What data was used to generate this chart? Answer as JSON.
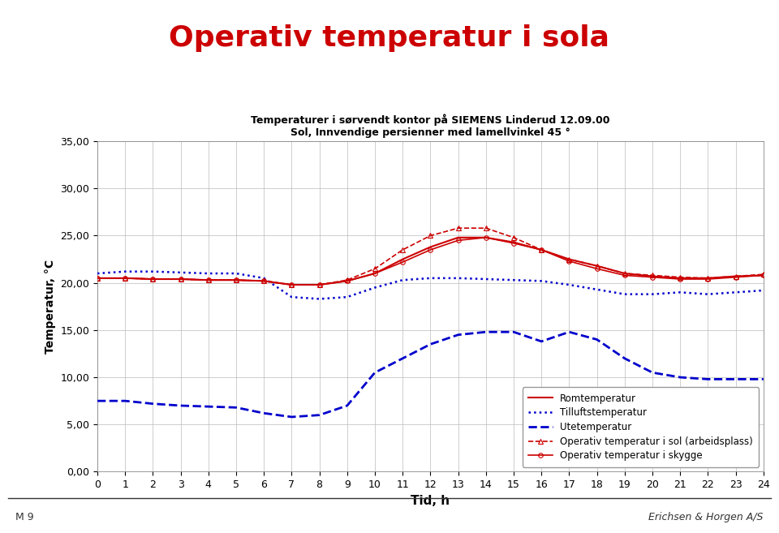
{
  "title": "Operativ temperatur i sola",
  "subtitle1": "Temperaturer i sørvendt kontor på SIEMENS Linderud 12.09.00",
  "subtitle2": "Sol, Innvendige persienner med lamellvinkel 45 °",
  "xlabel": "Tid, h",
  "ylabel": "Temperatur, °C",
  "xlim": [
    0,
    24
  ],
  "ylim": [
    0,
    35
  ],
  "yticks": [
    0.0,
    5.0,
    10.0,
    15.0,
    20.0,
    25.0,
    30.0,
    35.0
  ],
  "ytick_labels": [
    "0,00",
    "5,00",
    "10,00",
    "15,00",
    "20,00",
    "25,00",
    "30,00",
    "35,00"
  ],
  "xticks": [
    0,
    1,
    2,
    3,
    4,
    5,
    6,
    7,
    8,
    9,
    10,
    11,
    12,
    13,
    14,
    15,
    16,
    17,
    18,
    19,
    20,
    21,
    22,
    23,
    24
  ],
  "romtemperatur": [
    20.5,
    20.5,
    20.4,
    20.4,
    20.3,
    20.3,
    20.2,
    19.8,
    19.8,
    20.2,
    21.0,
    22.5,
    23.8,
    24.8,
    24.8,
    24.3,
    23.5,
    22.5,
    21.8,
    21.0,
    20.7,
    20.5,
    20.5,
    20.7,
    20.8
  ],
  "tilluftstemperatur": [
    21.0,
    21.2,
    21.2,
    21.1,
    21.0,
    21.0,
    20.5,
    18.5,
    18.3,
    18.5,
    19.5,
    20.3,
    20.5,
    20.5,
    20.4,
    20.3,
    20.2,
    19.8,
    19.3,
    18.8,
    18.8,
    19.0,
    18.8,
    19.0,
    19.2
  ],
  "utetemperatur": [
    7.5,
    7.5,
    7.2,
    7.0,
    6.9,
    6.8,
    6.2,
    5.8,
    6.0,
    7.0,
    10.5,
    12.0,
    13.5,
    14.5,
    14.8,
    14.8,
    13.8,
    14.8,
    14.0,
    12.0,
    10.5,
    10.0,
    9.8,
    9.8,
    9.8
  ],
  "operativ_sol": [
    20.5,
    20.5,
    20.4,
    20.4,
    20.3,
    20.3,
    20.2,
    19.8,
    19.8,
    20.3,
    21.5,
    23.5,
    25.0,
    25.8,
    25.8,
    24.8,
    23.5,
    22.5,
    21.8,
    21.0,
    20.8,
    20.6,
    20.5,
    20.7,
    20.9
  ],
  "operativ_skygge": [
    20.5,
    20.5,
    20.4,
    20.4,
    20.3,
    20.3,
    20.2,
    19.8,
    19.8,
    20.2,
    21.0,
    22.2,
    23.5,
    24.5,
    24.8,
    24.2,
    23.5,
    22.3,
    21.5,
    20.8,
    20.6,
    20.4,
    20.4,
    20.6,
    20.8
  ],
  "color_red": "#cc0000",
  "color_blue": "#0000cc",
  "color_title": "#cc0000",
  "background_color": "#ffffff",
  "grid_color": "#bbbbbb",
  "footer_left": "M 9",
  "footer_right": "Erichsen & Horgen A/S"
}
